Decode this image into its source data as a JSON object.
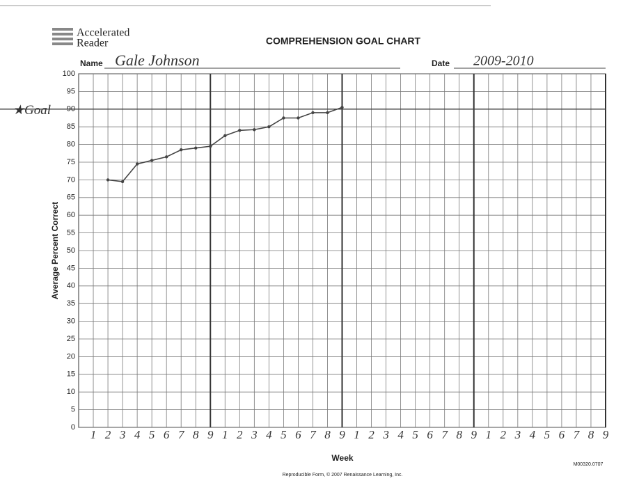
{
  "chart_data": {
    "type": "line",
    "brand": [
      "Accelerated",
      "Reader"
    ],
    "title": "COMPREHENSION GOAL CHART",
    "name_label": "Name",
    "name": "Gale Johnson",
    "date_label": "Date",
    "date": "2009-2010",
    "ylabel": "Average Percent Correct",
    "xlabel": "Week",
    "form_code": "M00320.0707",
    "footer": "Reproducible Form, © 2007 Renaissance Learning, Inc.",
    "goal": {
      "label": "★Goal",
      "value": 90
    },
    "x": [
      2,
      3,
      4,
      5,
      6,
      7,
      8,
      9,
      10,
      11,
      12,
      13,
      14,
      15,
      16,
      17,
      18
    ],
    "values": [
      70,
      69.5,
      74.5,
      75.5,
      76.5,
      78.5,
      79,
      79.5,
      82.5,
      84,
      84.2,
      85,
      87.5,
      87.5,
      89,
      89,
      90.5
    ],
    "color": "#444444",
    "xlim": [
      0,
      36
    ],
    "ylim": [
      0,
      100
    ],
    "xticks": [
      1,
      2,
      3,
      4,
      5,
      6,
      7,
      8,
      9,
      {
        "value": 10,
        "label": "1"
      },
      {
        "value": 11,
        "label": "2"
      },
      {
        "value": 12,
        "label": "3"
      },
      {
        "value": 13,
        "label": "4"
      },
      {
        "value": 14,
        "label": "5"
      },
      {
        "value": 15,
        "label": "6"
      },
      {
        "value": 16,
        "label": "7"
      },
      {
        "value": 17,
        "label": "8"
      },
      {
        "value": 18,
        "label": "9"
      },
      {
        "value": 19,
        "label": "1"
      },
      {
        "value": 20,
        "label": "2"
      },
      {
        "value": 21,
        "label": "3"
      },
      {
        "value": 22,
        "label": "4"
      },
      {
        "value": 23,
        "label": "5"
      },
      {
        "value": 24,
        "label": "6"
      },
      {
        "value": 25,
        "label": "7"
      },
      {
        "value": 26,
        "label": "8"
      },
      {
        "value": 27,
        "label": "9"
      },
      {
        "value": 28,
        "label": "1"
      },
      {
        "value": 29,
        "label": "2"
      },
      {
        "value": 30,
        "label": "3"
      },
      {
        "value": 31,
        "label": "4"
      },
      {
        "value": 32,
        "label": "5"
      },
      {
        "value": 33,
        "label": "6"
      },
      {
        "value": 34,
        "label": "7"
      },
      {
        "value": 35,
        "label": "8"
      },
      {
        "value": 36,
        "label": "9"
      }
    ],
    "yticks": [
      0,
      5,
      10,
      15,
      20,
      25,
      30,
      35,
      40,
      45,
      50,
      55,
      60,
      65,
      70,
      75,
      80,
      85,
      90,
      95,
      100
    ],
    "grid": true
  }
}
